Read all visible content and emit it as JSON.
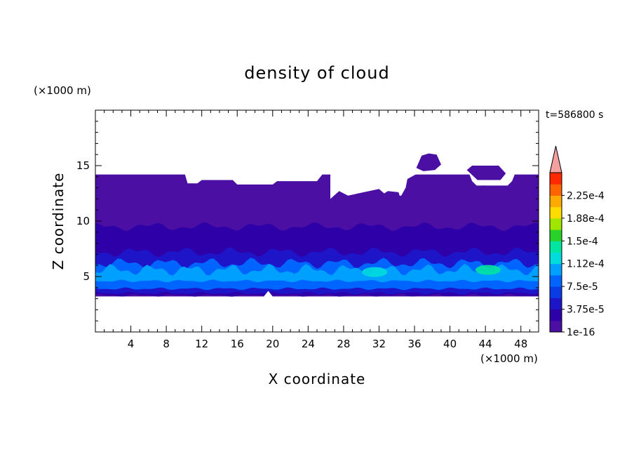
{
  "chart_data": {
    "type": "heatmap",
    "title": "density of cloud",
    "xlabel": "X coordinate",
    "ylabel": "Z coordinate",
    "x_unit": "(×1000 m)",
    "y_unit": "(×1000 m)",
    "time_label": "t=586800 s",
    "xlim": [
      0,
      50
    ],
    "ylim": [
      0,
      20
    ],
    "x_ticks": [
      4,
      8,
      12,
      16,
      20,
      24,
      28,
      32,
      36,
      40,
      44,
      48
    ],
    "y_ticks": [
      5,
      10,
      15
    ],
    "colorbar": {
      "levels": [
        "1e-16",
        "1.875e-5",
        "3.75e-5",
        "5.625e-5",
        "7.5e-5",
        "9.375e-5",
        "1.12e-4",
        "1.31e-4",
        "1.5e-4",
        "1.69e-4",
        "1.88e-4",
        "2.06e-4",
        "2.25e-4",
        "2.44e-4"
      ],
      "labels": [
        "2.25e-4",
        "1.88e-4",
        "1.5e-4",
        "1.12e-4",
        "7.5e-5",
        "3.75e-5",
        "1e-16"
      ],
      "colors": [
        "#4b0fa3",
        "#2e00a8",
        "#1e14c8",
        "#0a3ce6",
        "#0064ff",
        "#00a0ff",
        "#00dcdc",
        "#00e6a0",
        "#28d228",
        "#a0e600",
        "#ffdc00",
        "#ffaa00",
        "#ff6400",
        "#ff2800"
      ],
      "extend_max_color": "#f4a0a0"
    },
    "cloud_layers": [
      {
        "z_bottom": 3.2,
        "z_top": 14.2,
        "level": "1e-16"
      },
      {
        "z_bottom": 3.3,
        "z_top": 9.5,
        "level": "1.875e-5"
      },
      {
        "z_bottom": 3.5,
        "z_top": 7.2,
        "level": "3.75e-5"
      },
      {
        "z_bottom": 3.9,
        "z_top": 6.2,
        "level": "7.5e-5"
      },
      {
        "z_bottom": 4.6,
        "z_top": 5.6,
        "level": "9.375e-5"
      }
    ],
    "maxima": [
      {
        "x": 31.5,
        "z": 5.4,
        "level": "1.12e-4"
      },
      {
        "x": 44.3,
        "z": 5.6,
        "level": "1.31e-4"
      }
    ],
    "background_color": "#ffffff"
  }
}
